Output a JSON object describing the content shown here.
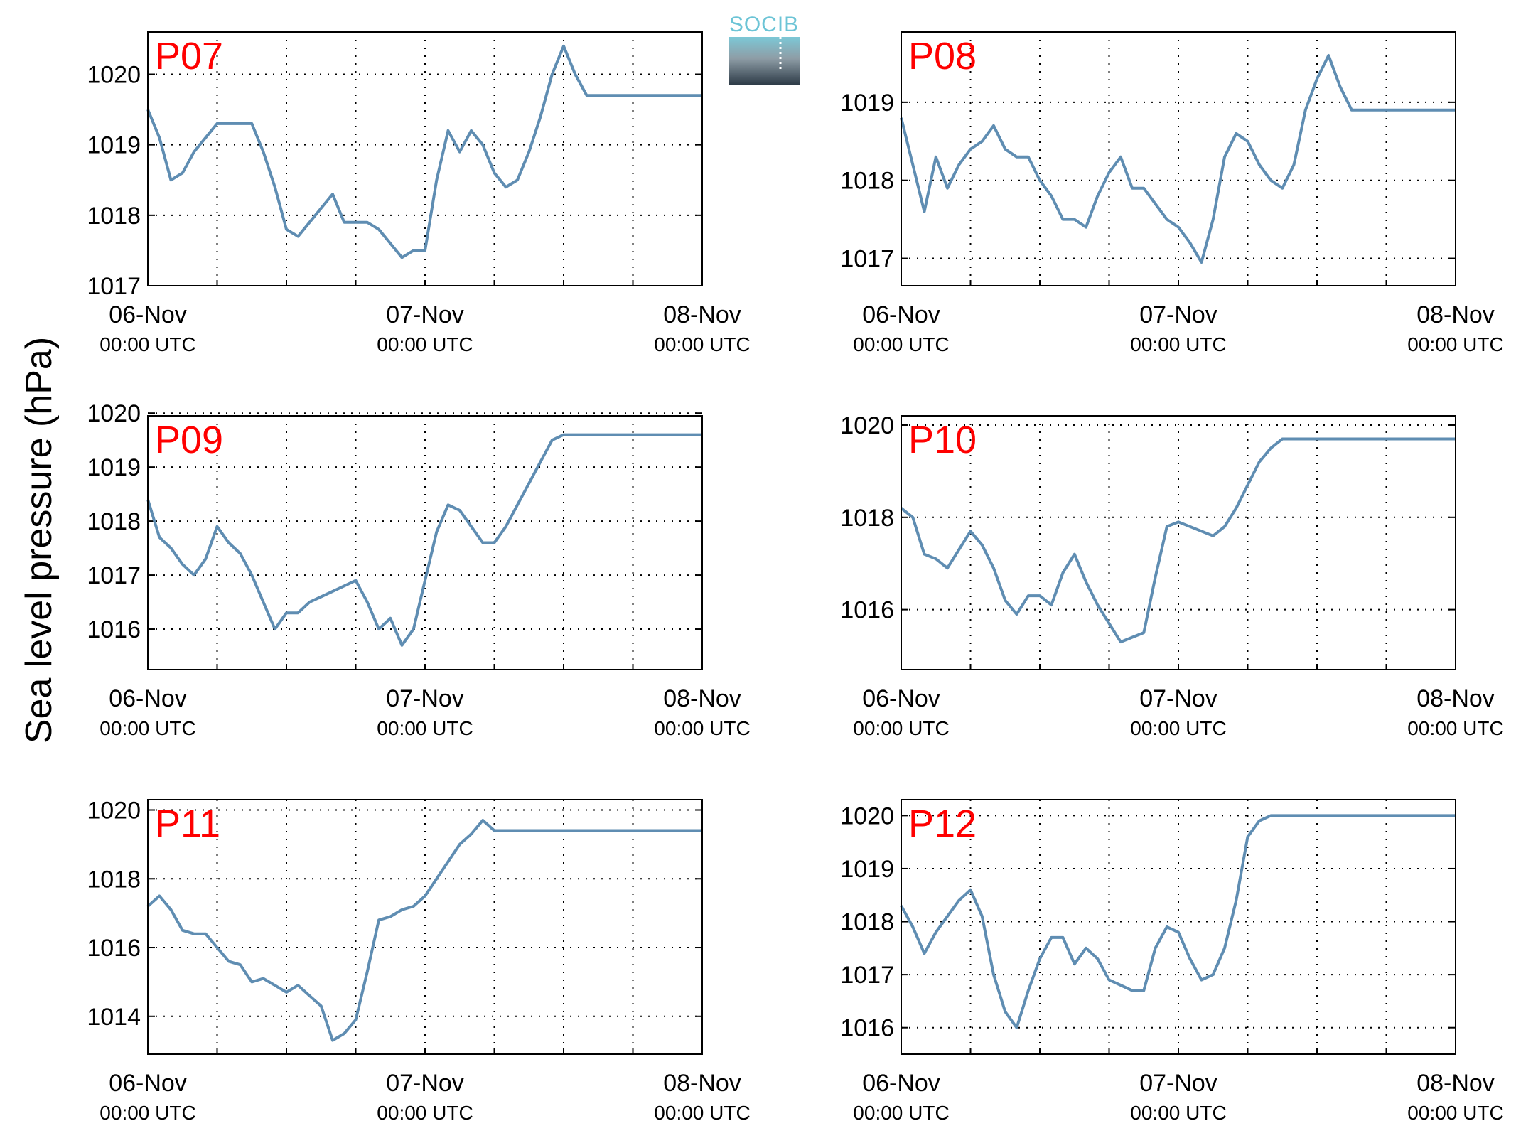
{
  "ylabel": "Sea level pressure (hPa)",
  "logo": {
    "text": "SOCIB"
  },
  "colors": {
    "line": "#5f8db2",
    "label": "#ff0000",
    "grid": "#000000"
  },
  "chart_data": [
    {
      "type": "line",
      "name": "P07",
      "x_ticks": [
        {
          "date": "06-Nov",
          "time": "00:00 UTC"
        },
        {
          "date": "07-Nov",
          "time": "00:00 UTC"
        },
        {
          "date": "08-Nov",
          "time": "00:00 UTC"
        }
      ],
      "xlim": [
        0,
        48
      ],
      "ylim": [
        1017,
        1020.6
      ],
      "yticks": [
        1017,
        1018,
        1019,
        1020
      ],
      "x": [
        0,
        1,
        2,
        3,
        4,
        5,
        6,
        7,
        8,
        9,
        10,
        11,
        12,
        13,
        14,
        15,
        16,
        17,
        18,
        19,
        20,
        21,
        22,
        23,
        24,
        25,
        26,
        27,
        28,
        29,
        30,
        31,
        32,
        33,
        34,
        35,
        36,
        37,
        38,
        39,
        40,
        41,
        42,
        43,
        44,
        45,
        46,
        47,
        48
      ],
      "y": [
        1019.5,
        1019.1,
        1018.5,
        1018.6,
        1018.9,
        1019.1,
        1019.3,
        1019.3,
        1019.3,
        1019.3,
        1018.9,
        1018.4,
        1017.8,
        1017.7,
        1017.9,
        1018.1,
        1018.3,
        1017.9,
        1017.9,
        1017.9,
        1017.8,
        1017.6,
        1017.4,
        1017.5,
        1017.5,
        1018.5,
        1019.2,
        1018.9,
        1019.2,
        1019.0,
        1018.6,
        1018.4,
        1018.5,
        1018.9,
        1019.4,
        1020.0,
        1020.4,
        1020.0,
        1019.7,
        1019.7,
        1019.7,
        1019.7,
        1019.7,
        1019.7,
        1019.7,
        1019.7,
        1019.7,
        1019.7,
        1019.7
      ]
    },
    {
      "type": "line",
      "name": "P08",
      "x_ticks": [
        {
          "date": "06-Nov",
          "time": "00:00 UTC"
        },
        {
          "date": "07-Nov",
          "time": "00:00 UTC"
        },
        {
          "date": "08-Nov",
          "time": "00:00 UTC"
        }
      ],
      "xlim": [
        0,
        48
      ],
      "ylim": [
        1016.65,
        1019.9
      ],
      "yticks": [
        1017,
        1018,
        1019
      ],
      "x": [
        0,
        1,
        2,
        3,
        4,
        5,
        6,
        7,
        8,
        9,
        10,
        11,
        12,
        13,
        14,
        15,
        16,
        17,
        18,
        19,
        20,
        21,
        22,
        23,
        24,
        25,
        26,
        27,
        28,
        29,
        30,
        31,
        32,
        33,
        34,
        35,
        36,
        37,
        38,
        39,
        40,
        41,
        42,
        43,
        44,
        45,
        46,
        47,
        48
      ],
      "y": [
        1018.8,
        1018.2,
        1017.6,
        1018.3,
        1017.9,
        1018.2,
        1018.4,
        1018.5,
        1018.7,
        1018.4,
        1018.3,
        1018.3,
        1018.0,
        1017.8,
        1017.5,
        1017.5,
        1017.4,
        1017.8,
        1018.1,
        1018.3,
        1017.9,
        1017.9,
        1017.7,
        1017.5,
        1017.4,
        1017.2,
        1016.95,
        1017.5,
        1018.3,
        1018.6,
        1018.5,
        1018.2,
        1018.0,
        1017.9,
        1018.2,
        1018.9,
        1019.3,
        1019.6,
        1019.2,
        1018.9,
        1018.9,
        1018.9,
        1018.9,
        1018.9,
        1018.9,
        1018.9,
        1018.9,
        1018.9,
        1018.9
      ]
    },
    {
      "type": "line",
      "name": "P09",
      "x_ticks": [
        {
          "date": "06-Nov",
          "time": "00:00 UTC"
        },
        {
          "date": "07-Nov",
          "time": "00:00 UTC"
        },
        {
          "date": "08-Nov",
          "time": "00:00 UTC"
        }
      ],
      "xlim": [
        0,
        48
      ],
      "ylim": [
        1015.25,
        1019.95
      ],
      "yticks": [
        1016,
        1017,
        1018,
        1019,
        1020
      ],
      "x": [
        0,
        1,
        2,
        3,
        4,
        5,
        6,
        7,
        8,
        9,
        10,
        11,
        12,
        13,
        14,
        15,
        16,
        17,
        18,
        19,
        20,
        21,
        22,
        23,
        24,
        25,
        26,
        27,
        28,
        29,
        30,
        31,
        32,
        33,
        34,
        35,
        36,
        37,
        38,
        39,
        40,
        41,
        42,
        43,
        44,
        45,
        46,
        47,
        48
      ],
      "y": [
        1018.4,
        1017.7,
        1017.5,
        1017.2,
        1017.0,
        1017.3,
        1017.9,
        1017.6,
        1017.4,
        1017.0,
        1016.5,
        1016.0,
        1016.3,
        1016.3,
        1016.5,
        1016.6,
        1016.7,
        1016.8,
        1016.9,
        1016.5,
        1016.0,
        1016.2,
        1015.7,
        1016.0,
        1016.9,
        1017.8,
        1018.3,
        1018.2,
        1017.9,
        1017.6,
        1017.6,
        1017.9,
        1018.3,
        1018.7,
        1019.1,
        1019.5,
        1019.6,
        1019.6,
        1019.6,
        1019.6,
        1019.6,
        1019.6,
        1019.6,
        1019.6,
        1019.6,
        1019.6,
        1019.6,
        1019.6,
        1019.6
      ]
    },
    {
      "type": "line",
      "name": "P10",
      "x_ticks": [
        {
          "date": "06-Nov",
          "time": "00:00 UTC"
        },
        {
          "date": "07-Nov",
          "time": "00:00 UTC"
        },
        {
          "date": "08-Nov",
          "time": "00:00 UTC"
        }
      ],
      "xlim": [
        0,
        48
      ],
      "ylim": [
        1014.7,
        1020.2
      ],
      "yticks": [
        1016,
        1018,
        1020
      ],
      "x": [
        0,
        1,
        2,
        3,
        4,
        5,
        6,
        7,
        8,
        9,
        10,
        11,
        12,
        13,
        14,
        15,
        16,
        17,
        18,
        19,
        20,
        21,
        22,
        23,
        24,
        25,
        26,
        27,
        28,
        29,
        30,
        31,
        32,
        33,
        34,
        35,
        36,
        37,
        38,
        39,
        40,
        41,
        42,
        43,
        44,
        45,
        46,
        47,
        48
      ],
      "y": [
        1018.2,
        1018.0,
        1017.2,
        1017.1,
        1016.9,
        1017.3,
        1017.7,
        1017.4,
        1016.9,
        1016.2,
        1015.9,
        1016.3,
        1016.3,
        1016.1,
        1016.8,
        1017.2,
        1016.6,
        1016.1,
        1015.7,
        1015.3,
        1015.4,
        1015.5,
        1016.7,
        1017.8,
        1017.9,
        1017.8,
        1017.7,
        1017.6,
        1017.8,
        1018.2,
        1018.7,
        1019.2,
        1019.5,
        1019.7,
        1019.7,
        1019.7,
        1019.7,
        1019.7,
        1019.7,
        1019.7,
        1019.7,
        1019.7,
        1019.7,
        1019.7,
        1019.7,
        1019.7,
        1019.7,
        1019.7,
        1019.7
      ]
    },
    {
      "type": "line",
      "name": "P11",
      "x_ticks": [
        {
          "date": "06-Nov",
          "time": "00:00 UTC"
        },
        {
          "date": "07-Nov",
          "time": "00:00 UTC"
        },
        {
          "date": "08-Nov",
          "time": "00:00 UTC"
        }
      ],
      "xlim": [
        0,
        48
      ],
      "ylim": [
        1012.9,
        1020.3
      ],
      "yticks": [
        1014,
        1016,
        1018,
        1020
      ],
      "x": [
        0,
        1,
        2,
        3,
        4,
        5,
        6,
        7,
        8,
        9,
        10,
        11,
        12,
        13,
        14,
        15,
        16,
        17,
        18,
        19,
        20,
        21,
        22,
        23,
        24,
        25,
        26,
        27,
        28,
        29,
        30,
        31,
        32,
        33,
        34,
        35,
        36,
        37,
        38,
        39,
        40,
        41,
        42,
        43,
        44,
        45,
        46,
        47,
        48
      ],
      "y": [
        1017.2,
        1017.5,
        1017.1,
        1016.5,
        1016.4,
        1016.4,
        1016.0,
        1015.6,
        1015.5,
        1015.0,
        1015.1,
        1014.9,
        1014.7,
        1014.9,
        1014.6,
        1014.3,
        1013.3,
        1013.5,
        1013.9,
        1015.3,
        1016.8,
        1016.9,
        1017.1,
        1017.2,
        1017.5,
        1018.0,
        1018.5,
        1019.0,
        1019.3,
        1019.7,
        1019.4,
        1019.4,
        1019.4,
        1019.4,
        1019.4,
        1019.4,
        1019.4,
        1019.4,
        1019.4,
        1019.4,
        1019.4,
        1019.4,
        1019.4,
        1019.4,
        1019.4,
        1019.4,
        1019.4,
        1019.4,
        1019.4
      ]
    },
    {
      "type": "line",
      "name": "P12",
      "x_ticks": [
        {
          "date": "06-Nov",
          "time": "00:00 UTC"
        },
        {
          "date": "07-Nov",
          "time": "00:00 UTC"
        },
        {
          "date": "08-Nov",
          "time": "00:00 UTC"
        }
      ],
      "xlim": [
        0,
        48
      ],
      "ylim": [
        1015.5,
        1020.3
      ],
      "yticks": [
        1016,
        1017,
        1018,
        1019,
        1020
      ],
      "x": [
        0,
        1,
        2,
        3,
        4,
        5,
        6,
        7,
        8,
        9,
        10,
        11,
        12,
        13,
        14,
        15,
        16,
        17,
        18,
        19,
        20,
        21,
        22,
        23,
        24,
        25,
        26,
        27,
        28,
        29,
        30,
        31,
        32,
        33,
        34,
        35,
        36,
        37,
        38,
        39,
        40,
        41,
        42,
        43,
        44,
        45,
        46,
        47,
        48
      ],
      "y": [
        1018.3,
        1017.9,
        1017.4,
        1017.8,
        1018.1,
        1018.4,
        1018.6,
        1018.1,
        1017.0,
        1016.3,
        1016.0,
        1016.7,
        1017.3,
        1017.7,
        1017.7,
        1017.2,
        1017.5,
        1017.3,
        1016.9,
        1016.8,
        1016.7,
        1016.7,
        1017.5,
        1017.9,
        1017.8,
        1017.3,
        1016.9,
        1017.0,
        1017.5,
        1018.4,
        1019.6,
        1019.9,
        1020.0,
        1020.0,
        1020.0,
        1020.0,
        1020.0,
        1020.0,
        1020.0,
        1020.0,
        1020.0,
        1020.0,
        1020.0,
        1020.0,
        1020.0,
        1020.0,
        1020.0,
        1020.0,
        1020.0
      ]
    }
  ]
}
